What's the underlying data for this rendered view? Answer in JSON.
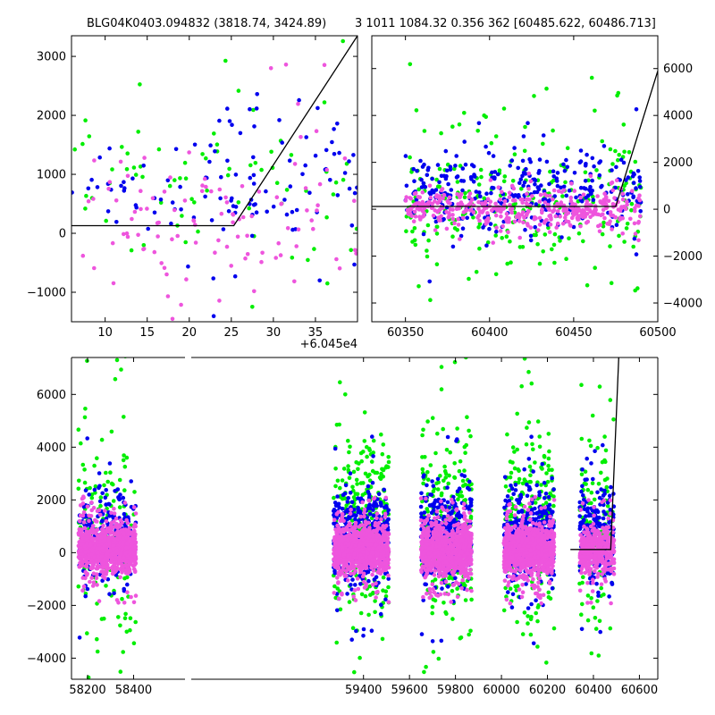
{
  "header": {
    "title_left": "BLG04K0403.094832 (3818.74, 3424.89)",
    "title_right": "3 1011 1084.32 0.356 362 [60485.622, 60486.713]"
  },
  "colors": {
    "series_blue": "#0000ee",
    "series_green": "#00ee00",
    "series_pink": "#ee55dd",
    "model_line": "#000000"
  },
  "chart_data": [
    {
      "type": "scatter",
      "panel": "top-left",
      "xlim": [
        6,
        40
      ],
      "ylim": [
        -1500,
        3350
      ],
      "x_offset_label": "+6.045e4",
      "xticks": [
        10,
        15,
        20,
        25,
        30,
        35
      ],
      "yticks": [
        -1000,
        0,
        1000,
        2000,
        3000
      ],
      "ytick_side": "left",
      "grid": false,
      "model": {
        "x": [
          6,
          25.3,
          40
        ],
        "y": [
          130,
          130,
          3350
        ]
      },
      "series": [
        {
          "color": "blue",
          "count": 85,
          "x_range": [
            20,
            40
          ],
          "center": 1000,
          "spread": 700,
          "outlier_rate": 0.08,
          "seed": 11
        },
        {
          "color": "blue",
          "count": 30,
          "x_range": [
            6,
            20
          ],
          "center": 500,
          "spread": 400,
          "outlier_rate": 0.05,
          "seed": 12
        },
        {
          "color": "green",
          "count": 80,
          "x_range": [
            6,
            40
          ],
          "center": 700,
          "spread": 900,
          "outlier_rate": 0.2,
          "seed": 13
        },
        {
          "color": "pink",
          "count": 110,
          "x_range": [
            6,
            40
          ],
          "center": 350,
          "spread": 700,
          "outlier_rate": 0.12,
          "seed": 14
        }
      ]
    },
    {
      "type": "scatter",
      "panel": "top-right",
      "xlim": [
        60330,
        60500
      ],
      "ylim": [
        -4800,
        7400
      ],
      "xticks": [
        60350,
        60400,
        60450,
        60500
      ],
      "yticks": [
        -4000,
        -2000,
        0,
        2000,
        4000,
        6000
      ],
      "ytick_side": "right",
      "grid": false,
      "model": {
        "x": [
          60330,
          60475,
          60500
        ],
        "y": [
          120,
          120,
          5900
        ]
      },
      "series": [
        {
          "color": "blue",
          "count": 320,
          "x_range": [
            60350,
            60490
          ],
          "center": 700,
          "spread": 900,
          "outlier_rate": 0.05,
          "seed": 21
        },
        {
          "color": "green",
          "count": 260,
          "x_range": [
            60350,
            60490
          ],
          "center": 400,
          "spread": 1300,
          "outlier_rate": 0.12,
          "seed": 22
        },
        {
          "color": "pink",
          "count": 420,
          "x_range": [
            60350,
            60490
          ],
          "center": 0,
          "spread": 350,
          "outlier_rate": 0.06,
          "seed": 23
        }
      ]
    },
    {
      "type": "scatter",
      "panel": "bottom",
      "xlim": [
        58130,
        60680
      ],
      "ylim": [
        -4800,
        7400
      ],
      "xticks": [
        58200,
        58400,
        59400,
        59600,
        59800,
        60000,
        60200,
        60400,
        60600
      ],
      "yticks": [
        -4000,
        -2000,
        0,
        2000,
        4000,
        6000
      ],
      "ytick_side": "left",
      "grid": false,
      "model": {
        "x": [
          60300,
          60475,
          60510
        ],
        "y": [
          120,
          120,
          7400
        ]
      },
      "seasons": [
        {
          "x_range": [
            58160,
            58410
          ],
          "counts": {
            "blue": 220,
            "green": 140,
            "pink": 900
          },
          "seed": 31
        },
        {
          "x_range": [
            59270,
            59510
          ],
          "counts": {
            "blue": 400,
            "green": 300,
            "pink": 900
          },
          "seed": 32
        },
        {
          "x_range": [
            59650,
            59870
          ],
          "counts": {
            "blue": 380,
            "green": 240,
            "pink": 900
          },
          "seed": 33
        },
        {
          "x_range": [
            60010,
            60230
          ],
          "counts": {
            "blue": 380,
            "green": 240,
            "pink": 900
          },
          "seed": 34
        },
        {
          "x_range": [
            60340,
            60490
          ],
          "counts": {
            "blue": 220,
            "green": 130,
            "pink": 380
          },
          "seed": 35
        }
      ]
    }
  ]
}
